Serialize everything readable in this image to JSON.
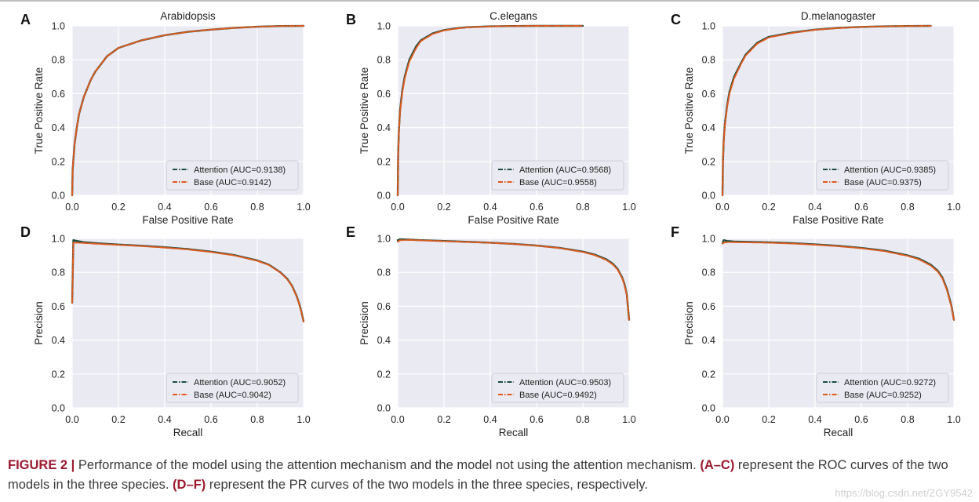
{
  "colors": {
    "attention": "#1b4d3e",
    "base": "#e05a1e",
    "panel_bg": "#eaeaf2",
    "grid": "#ffffff",
    "caption_accent": "#9a1a2e"
  },
  "chart_data": [
    {
      "id": "roc-arabidopsis",
      "letter": "A",
      "type": "line",
      "title": "Arabidopsis",
      "xlabel": "False Positive Rate",
      "ylabel": "True Positive Rate",
      "xlim": [
        0,
        1
      ],
      "ylim": [
        0,
        1
      ],
      "ticks": [
        "0.0",
        "0.2",
        "0.4",
        "0.6",
        "0.8",
        "1.0"
      ],
      "legend": "lower-right",
      "series": [
        {
          "name": "Attention (AUC=0.9138)",
          "x": [
            0,
            0.002,
            0.01,
            0.02,
            0.03,
            0.05,
            0.08,
            0.1,
            0.15,
            0.2,
            0.3,
            0.4,
            0.5,
            0.6,
            0.7,
            0.8,
            0.9,
            1.0
          ],
          "y": [
            0,
            0.15,
            0.3,
            0.4,
            0.48,
            0.58,
            0.68,
            0.73,
            0.82,
            0.87,
            0.915,
            0.945,
            0.965,
            0.978,
            0.988,
            0.995,
            0.999,
            1.0
          ]
        },
        {
          "name": "Base (AUC=0.9142)",
          "x": [
            0,
            0.002,
            0.01,
            0.02,
            0.03,
            0.05,
            0.08,
            0.1,
            0.15,
            0.2,
            0.3,
            0.4,
            0.5,
            0.6,
            0.7,
            0.8,
            0.9,
            1.0
          ],
          "y": [
            0,
            0.15,
            0.3,
            0.4,
            0.48,
            0.58,
            0.68,
            0.73,
            0.82,
            0.87,
            0.915,
            0.945,
            0.965,
            0.978,
            0.988,
            0.995,
            0.999,
            1.0
          ]
        }
      ]
    },
    {
      "id": "roc-celegans",
      "letter": "B",
      "type": "line",
      "title": "C.elegans",
      "xlabel": "False Positive Rate",
      "ylabel": "True Positive Rate",
      "xlim": [
        0,
        1
      ],
      "ylim": [
        0,
        1
      ],
      "ticks": [
        "0.0",
        "0.2",
        "0.4",
        "0.6",
        "0.8",
        "1.0"
      ],
      "legend": "lower-right",
      "series": [
        {
          "name": "Attention (AUC=0.9568)",
          "x": [
            0,
            0.002,
            0.005,
            0.01,
            0.02,
            0.03,
            0.05,
            0.08,
            0.1,
            0.15,
            0.2,
            0.25,
            0.3,
            0.4,
            0.5,
            0.6,
            0.8
          ],
          "y": [
            0,
            0.25,
            0.38,
            0.5,
            0.62,
            0.7,
            0.8,
            0.88,
            0.915,
            0.955,
            0.975,
            0.985,
            0.992,
            0.997,
            0.999,
            1.0,
            1.0
          ]
        },
        {
          "name": "Base (AUC=0.9558)",
          "x": [
            0,
            0.002,
            0.005,
            0.01,
            0.02,
            0.03,
            0.05,
            0.08,
            0.1,
            0.15,
            0.2,
            0.25,
            0.3,
            0.4,
            0.5,
            0.6,
            0.8
          ],
          "y": [
            0,
            0.25,
            0.37,
            0.49,
            0.61,
            0.69,
            0.79,
            0.87,
            0.91,
            0.952,
            0.973,
            0.984,
            0.991,
            0.997,
            0.999,
            1.0,
            1.0
          ]
        }
      ]
    },
    {
      "id": "roc-dmelanogaster",
      "letter": "C",
      "type": "line",
      "title": "D.melanogaster",
      "xlabel": "False Positive Rate",
      "ylabel": "True Positive Rate",
      "xlim": [
        0,
        1
      ],
      "ylim": [
        0,
        1
      ],
      "ticks": [
        "0.0",
        "0.2",
        "0.4",
        "0.6",
        "0.8",
        "1.0"
      ],
      "legend": "lower-right",
      "series": [
        {
          "name": "Attention (AUC=0.9385)",
          "x": [
            0,
            0.002,
            0.005,
            0.01,
            0.02,
            0.03,
            0.05,
            0.08,
            0.1,
            0.15,
            0.2,
            0.3,
            0.4,
            0.5,
            0.6,
            0.7,
            0.8,
            0.9
          ],
          "y": [
            0,
            0.2,
            0.32,
            0.42,
            0.53,
            0.61,
            0.7,
            0.78,
            0.83,
            0.9,
            0.935,
            0.96,
            0.978,
            0.988,
            0.994,
            0.997,
            0.999,
            1.0
          ]
        },
        {
          "name": "Base (AUC=0.9375)",
          "x": [
            0,
            0.002,
            0.005,
            0.01,
            0.02,
            0.03,
            0.05,
            0.08,
            0.1,
            0.15,
            0.2,
            0.3,
            0.4,
            0.5,
            0.6,
            0.7,
            0.8,
            0.9
          ],
          "y": [
            0,
            0.2,
            0.31,
            0.41,
            0.52,
            0.6,
            0.69,
            0.775,
            0.825,
            0.895,
            0.932,
            0.958,
            0.977,
            0.987,
            0.994,
            0.997,
            0.999,
            1.0
          ]
        }
      ]
    },
    {
      "id": "pr-arabidopsis",
      "letter": "D",
      "type": "line",
      "title": "",
      "xlabel": "Recall",
      "ylabel": "Precision",
      "xlim": [
        0,
        1
      ],
      "ylim": [
        0,
        1
      ],
      "ticks": [
        "0.0",
        "0.2",
        "0.4",
        "0.6",
        "0.8",
        "1.0"
      ],
      "legend": "lower-right",
      "series": [
        {
          "name": "Attention (AUC=0.9052)",
          "x": [
            0,
            0.005,
            0.02,
            0.05,
            0.1,
            0.2,
            0.3,
            0.4,
            0.5,
            0.6,
            0.7,
            0.8,
            0.85,
            0.9,
            0.93,
            0.95,
            0.97,
            0.98,
            0.99,
            1.0
          ],
          "y": [
            0.62,
            0.99,
            0.985,
            0.978,
            0.972,
            0.964,
            0.957,
            0.948,
            0.937,
            0.922,
            0.902,
            0.87,
            0.845,
            0.8,
            0.76,
            0.72,
            0.66,
            0.62,
            0.57,
            0.51
          ]
        },
        {
          "name": "Base (AUC=0.9042)",
          "x": [
            0,
            0.005,
            0.02,
            0.05,
            0.1,
            0.2,
            0.3,
            0.4,
            0.5,
            0.6,
            0.7,
            0.8,
            0.85,
            0.9,
            0.93,
            0.95,
            0.97,
            0.98,
            0.99,
            1.0
          ],
          "y": [
            0.62,
            0.975,
            0.975,
            0.973,
            0.969,
            0.962,
            0.955,
            0.946,
            0.935,
            0.92,
            0.9,
            0.868,
            0.843,
            0.798,
            0.758,
            0.718,
            0.658,
            0.618,
            0.568,
            0.51
          ]
        }
      ]
    },
    {
      "id": "pr-celegans",
      "letter": "E",
      "type": "line",
      "title": "",
      "xlabel": "Recall",
      "ylabel": "Precision",
      "xlim": [
        0,
        1
      ],
      "ylim": [
        0,
        1
      ],
      "ticks": [
        "0.0",
        "0.2",
        "0.4",
        "0.6",
        "0.8",
        "1.0"
      ],
      "legend": "lower-right",
      "series": [
        {
          "name": "Attention (AUC=0.9503)",
          "x": [
            0,
            0.01,
            0.05,
            0.1,
            0.2,
            0.3,
            0.4,
            0.5,
            0.6,
            0.7,
            0.8,
            0.85,
            0.9,
            0.93,
            0.95,
            0.97,
            0.98,
            0.99,
            1.0
          ],
          "y": [
            0.99,
            0.995,
            0.993,
            0.99,
            0.985,
            0.98,
            0.975,
            0.968,
            0.958,
            0.944,
            0.922,
            0.905,
            0.878,
            0.85,
            0.82,
            0.77,
            0.73,
            0.67,
            0.52
          ]
        },
        {
          "name": "Base (AUC=0.9492)",
          "x": [
            0,
            0.01,
            0.05,
            0.1,
            0.2,
            0.3,
            0.4,
            0.5,
            0.6,
            0.7,
            0.8,
            0.85,
            0.9,
            0.93,
            0.95,
            0.97,
            0.98,
            0.99,
            1.0
          ],
          "y": [
            0.98,
            0.99,
            0.991,
            0.989,
            0.984,
            0.979,
            0.974,
            0.967,
            0.957,
            0.943,
            0.92,
            0.902,
            0.874,
            0.846,
            0.816,
            0.766,
            0.726,
            0.666,
            0.52
          ]
        }
      ]
    },
    {
      "id": "pr-dmelanogaster",
      "letter": "F",
      "type": "line",
      "title": "",
      "xlabel": "Recall",
      "ylabel": "Precision",
      "xlim": [
        0,
        1
      ],
      "ylim": [
        0,
        1
      ],
      "ticks": [
        "0.0",
        "0.2",
        "0.4",
        "0.6",
        "0.8",
        "1.0"
      ],
      "legend": "lower-right",
      "series": [
        {
          "name": "Attention (AUC=0.9272)",
          "x": [
            0,
            0.005,
            0.02,
            0.05,
            0.1,
            0.2,
            0.3,
            0.4,
            0.5,
            0.6,
            0.7,
            0.8,
            0.85,
            0.9,
            0.93,
            0.95,
            0.97,
            0.98,
            0.99,
            1.0
          ],
          "y": [
            0.97,
            0.99,
            0.985,
            0.982,
            0.98,
            0.977,
            0.972,
            0.965,
            0.956,
            0.944,
            0.928,
            0.9,
            0.88,
            0.845,
            0.81,
            0.77,
            0.7,
            0.65,
            0.6,
            0.52
          ]
        },
        {
          "name": "Base (AUC=0.9252)",
          "x": [
            0,
            0.005,
            0.02,
            0.05,
            0.1,
            0.2,
            0.3,
            0.4,
            0.5,
            0.6,
            0.7,
            0.8,
            0.85,
            0.9,
            0.93,
            0.95,
            0.97,
            0.98,
            0.99,
            1.0
          ],
          "y": [
            0.97,
            0.975,
            0.978,
            0.978,
            0.977,
            0.975,
            0.97,
            0.963,
            0.954,
            0.942,
            0.925,
            0.897,
            0.876,
            0.84,
            0.805,
            0.765,
            0.695,
            0.645,
            0.595,
            0.52
          ]
        }
      ]
    }
  ],
  "caption": {
    "label": "FIGURE 2 |",
    "text1": " Performance of the model using the attention mechanism and the model not using the attention mechanism. ",
    "ref1": "(A–C)",
    "text2": " represent the ROC curves of the two models in the three species. ",
    "ref2": "(D–F)",
    "text3": " represent the PR curves of the two models in the three species, respectively."
  },
  "watermark": "https://blog.csdn.net/ZGY9542"
}
